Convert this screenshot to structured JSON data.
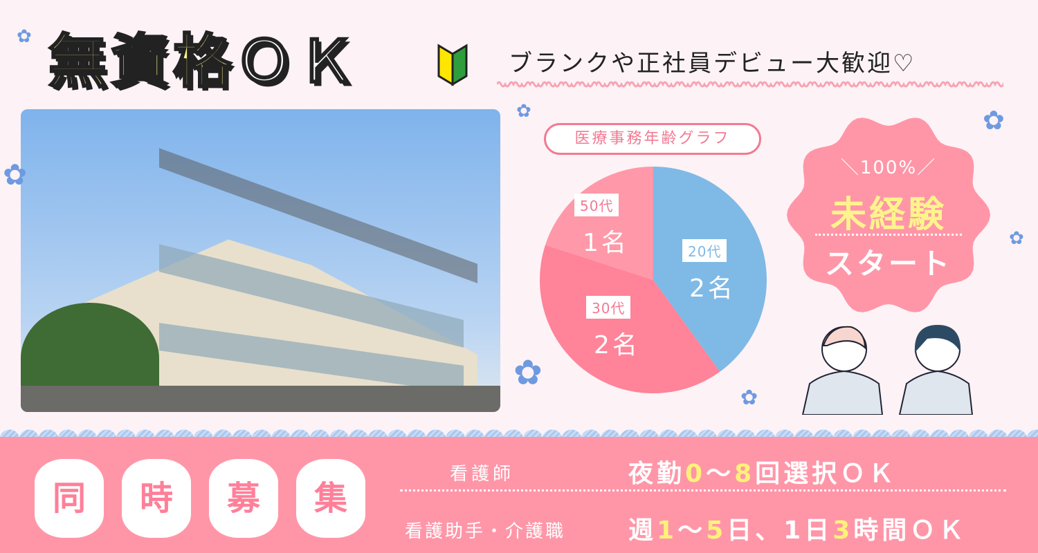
{
  "headline": {
    "main": "無資格",
    "ok": "ＯＫ"
  },
  "subheadline": "ブランクや正社員デビュー大歓迎♡",
  "chart_title": "医療事務年齢グラフ",
  "chart_data": {
    "type": "pie",
    "title": "医療事務年齢グラフ",
    "categories": [
      "20代",
      "30代",
      "50代"
    ],
    "values": [
      2,
      2,
      1
    ],
    "value_labels": [
      "2名",
      "2名",
      "1名"
    ],
    "colors": [
      "#7fb9e6",
      "#ff8399",
      "#ff98a8"
    ],
    "label_colors": [
      "#7fb9e6",
      "#f27a93",
      "#f27a93"
    ]
  },
  "badge": {
    "top": "＼100%／",
    "main": "未経験",
    "bottom": "スタート"
  },
  "recruit": {
    "chars": [
      "同",
      "時",
      "募",
      "集"
    ],
    "rows": [
      {
        "role": "看護師",
        "segments": [
          {
            "t": "夜勤",
            "h": false
          },
          {
            "t": "0",
            "h": true
          },
          {
            "t": "～",
            "h": false
          },
          {
            "t": "8",
            "h": true
          },
          {
            "t": "回選択ＯＫ",
            "h": false
          }
        ]
      },
      {
        "role": "看護助手・介護職",
        "segments": [
          {
            "t": "週",
            "h": false
          },
          {
            "t": "1",
            "h": true
          },
          {
            "t": "～",
            "h": false
          },
          {
            "t": "5",
            "h": true
          },
          {
            "t": "日、1日",
            "h": false
          },
          {
            "t": "3",
            "h": true
          },
          {
            "t": "時間ＯＫ",
            "h": false
          }
        ]
      }
    ]
  },
  "colors": {
    "pink": "#ff96a8",
    "yellow": "#fff27a",
    "blue": "#7fb9e6"
  }
}
